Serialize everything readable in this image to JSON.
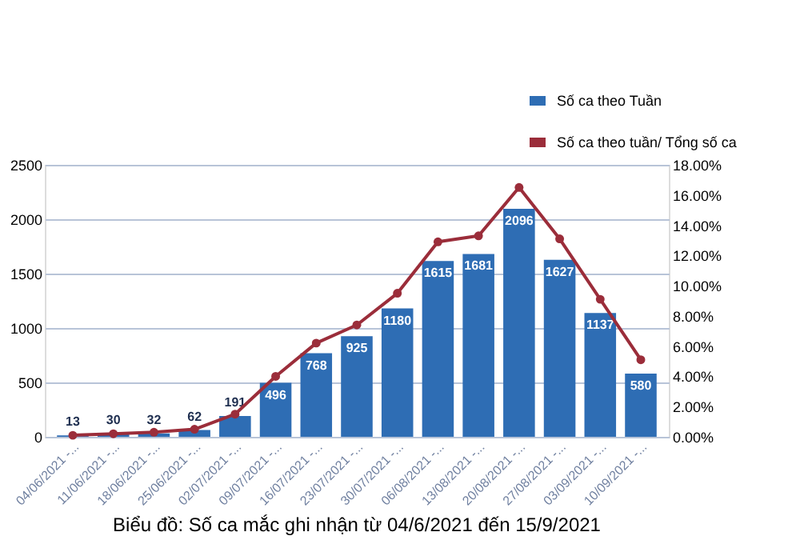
{
  "chart_data": {
    "type": "bar",
    "categories": [
      "04/06/2021 -...",
      "11/06/2021 -...",
      "18/06/2021 -...",
      "25/06/2021 -...",
      "02/07/2021 -...",
      "09/07/2021 -...",
      "16/07/2021 -...",
      "23/07/2021 -...",
      "30/07/2021 -...",
      "06/08/2021 -...",
      "13/08/2021 -...",
      "20/08/2021 -...",
      "27/08/2021 -...",
      "03/09/2021 -...",
      "10/09/2021 -..."
    ],
    "series": [
      {
        "name": "Số ca theo Tuần",
        "color": "#2e6db4",
        "values": [
          13,
          30,
          32,
          62,
          191,
          496,
          768,
          925,
          1180,
          1615,
          1681,
          2096,
          1627,
          1137,
          580
        ],
        "value_labels": [
          "13",
          "30",
          "32",
          "62",
          "191",
          "496",
          "768",
          "925",
          "1180",
          "1615",
          "1681",
          "2096",
          "1627",
          "1137",
          "580"
        ]
      },
      {
        "name": "Số ca theo tuần/ Tổng số ca",
        "type": "line",
        "axis": "y2",
        "color": "#9b2d3a",
        "marker": "circle",
        "values": [
          0.1,
          0.2,
          0.3,
          0.5,
          1.5,
          4.0,
          6.2,
          7.4,
          9.5,
          12.9,
          13.3,
          16.5,
          13.1,
          9.1,
          5.1
        ]
      }
    ],
    "ylim": [
      0,
      2500
    ],
    "yticks": [
      0,
      500,
      1000,
      1500,
      2000,
      2500
    ],
    "y2lim": [
      0,
      18
    ],
    "y2ticks": [
      {
        "value": 0,
        "label": "0.00%"
      },
      {
        "value": 2,
        "label": "2.00%"
      },
      {
        "value": 4,
        "label": "4.00%"
      },
      {
        "value": 6,
        "label": "6.00%"
      },
      {
        "value": 8,
        "label": "8.00%"
      },
      {
        "value": 10,
        "label": "10.00%"
      },
      {
        "value": 12,
        "label": "12.00%"
      },
      {
        "value": 14,
        "label": "14.00%"
      },
      {
        "value": 16,
        "label": "16.00%"
      },
      {
        "value": 18,
        "label": "18.00%"
      }
    ],
    "grid": "y",
    "legend": "top right",
    "annotations": [
      "Biểu đồ: Số ca mắc ghi nhận từ 04/6/2021 đến 15/9/2021"
    ]
  }
}
